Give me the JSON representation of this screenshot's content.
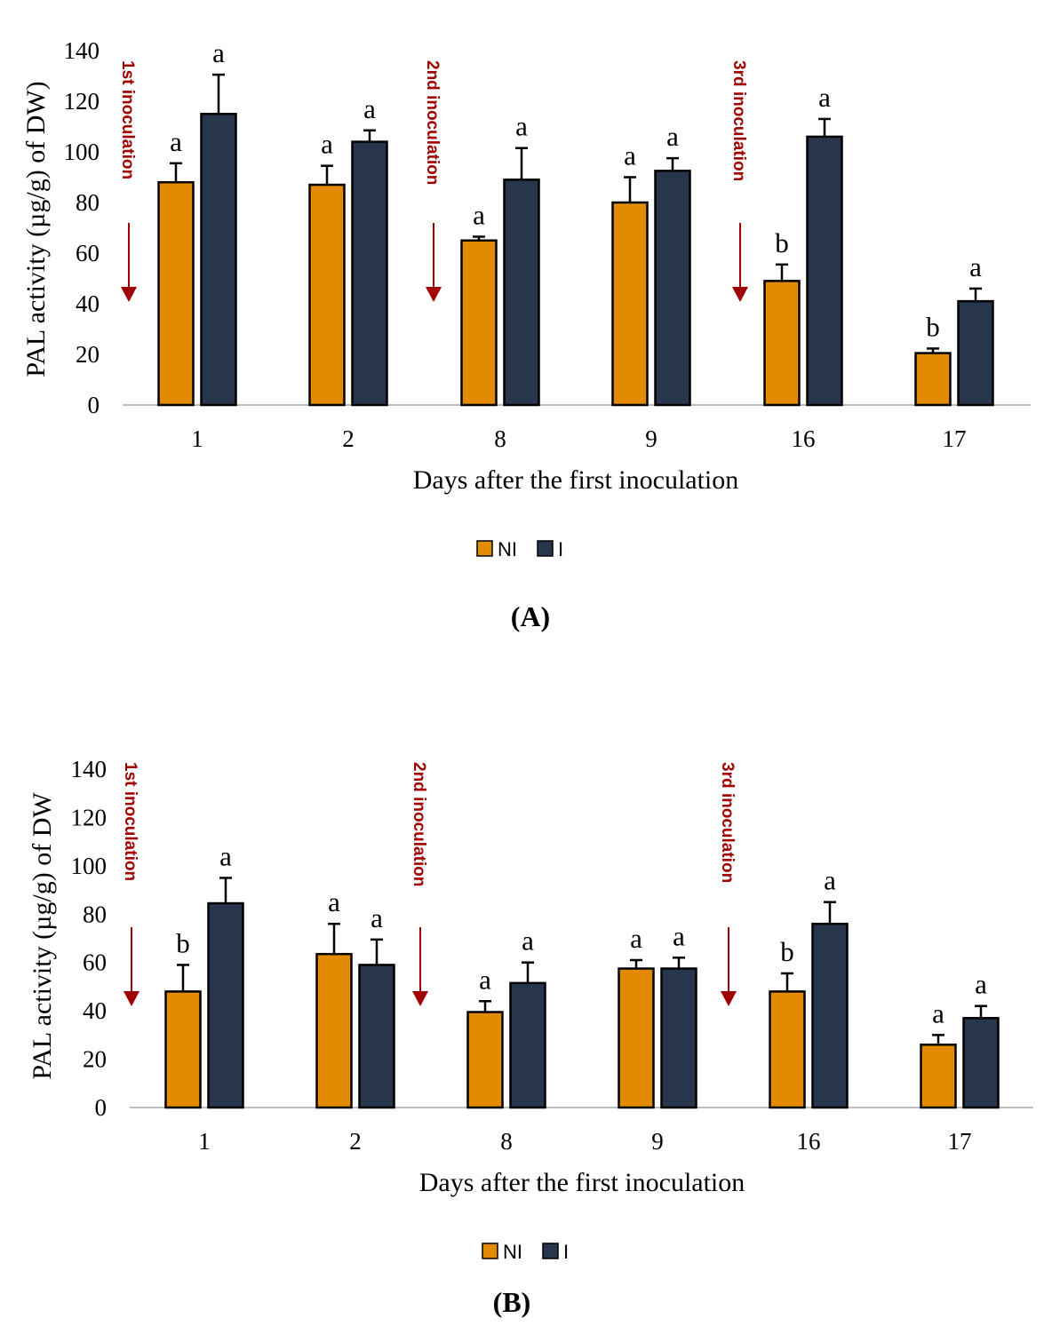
{
  "chart_data": [
    {
      "type": "bar",
      "panel_label": "(A)",
      "ylabel": "PAL activity (µg/g) of DW)",
      "xlabel": "Days after the first inoculation",
      "categories": [
        "1",
        "2",
        "8",
        "9",
        "16",
        "17"
      ],
      "ylim": [
        0,
        140
      ],
      "yticks": [
        "0",
        "20",
        "40",
        "60",
        "80",
        "100",
        "120",
        "140"
      ],
      "series": [
        {
          "name": "NI",
          "color": "#e28a00",
          "values": [
            88,
            87,
            65,
            80,
            49,
            20.5
          ],
          "errors": [
            7.5,
            7.5,
            1.5,
            10,
            6.5,
            1.8
          ],
          "letters": [
            "a",
            "a",
            "a",
            "a",
            "b",
            "b"
          ]
        },
        {
          "name": "I",
          "color": "#27364c",
          "values": [
            115,
            104,
            89,
            92.5,
            106,
            41
          ],
          "errors": [
            15.5,
            4.5,
            12.5,
            5,
            7,
            5
          ],
          "letters": [
            "a",
            "a",
            "a",
            "a",
            "a",
            "a"
          ]
        }
      ],
      "annotations": [
        {
          "text": "1st inoculation",
          "after_index": -1
        },
        {
          "text": "2nd inoculation",
          "after_index": 1
        },
        {
          "text": "3rd inoculation",
          "after_index": 3
        }
      ],
      "annotation_color": "#a00000",
      "legend_position": "bottom",
      "grid": false
    },
    {
      "type": "bar",
      "panel_label": "(B)",
      "ylabel": "PAL activity (µg/g) of DW",
      "xlabel": "Days after the first inoculation",
      "categories": [
        "1",
        "2",
        "8",
        "9",
        "16",
        "17"
      ],
      "ylim": [
        0,
        140
      ],
      "yticks": [
        "0",
        "20",
        "40",
        "60",
        "80",
        "100",
        "120",
        "140"
      ],
      "series": [
        {
          "name": "NI",
          "color": "#e28a00",
          "values": [
            48,
            63.5,
            39.5,
            57.5,
            48,
            26
          ],
          "errors": [
            11,
            12.5,
            4.5,
            3.5,
            7.5,
            4
          ],
          "letters": [
            "b",
            "a",
            "a",
            "a",
            "b",
            "a"
          ]
        },
        {
          "name": "I",
          "color": "#27364c",
          "values": [
            84.5,
            59,
            51.5,
            57.5,
            76,
            37
          ],
          "errors": [
            10.5,
            10.5,
            8.5,
            4.5,
            9,
            5
          ],
          "letters": [
            "a",
            "a",
            "a",
            "a",
            "a",
            "a"
          ]
        }
      ],
      "annotations": [
        {
          "text": "1st inoculation",
          "after_index": -1
        },
        {
          "text": "2nd inoculation",
          "after_index": 1
        },
        {
          "text": "3rd inoculation",
          "after_index": 3
        }
      ],
      "annotation_color": "#a00000",
      "legend_position": "bottom",
      "grid": false
    }
  ]
}
